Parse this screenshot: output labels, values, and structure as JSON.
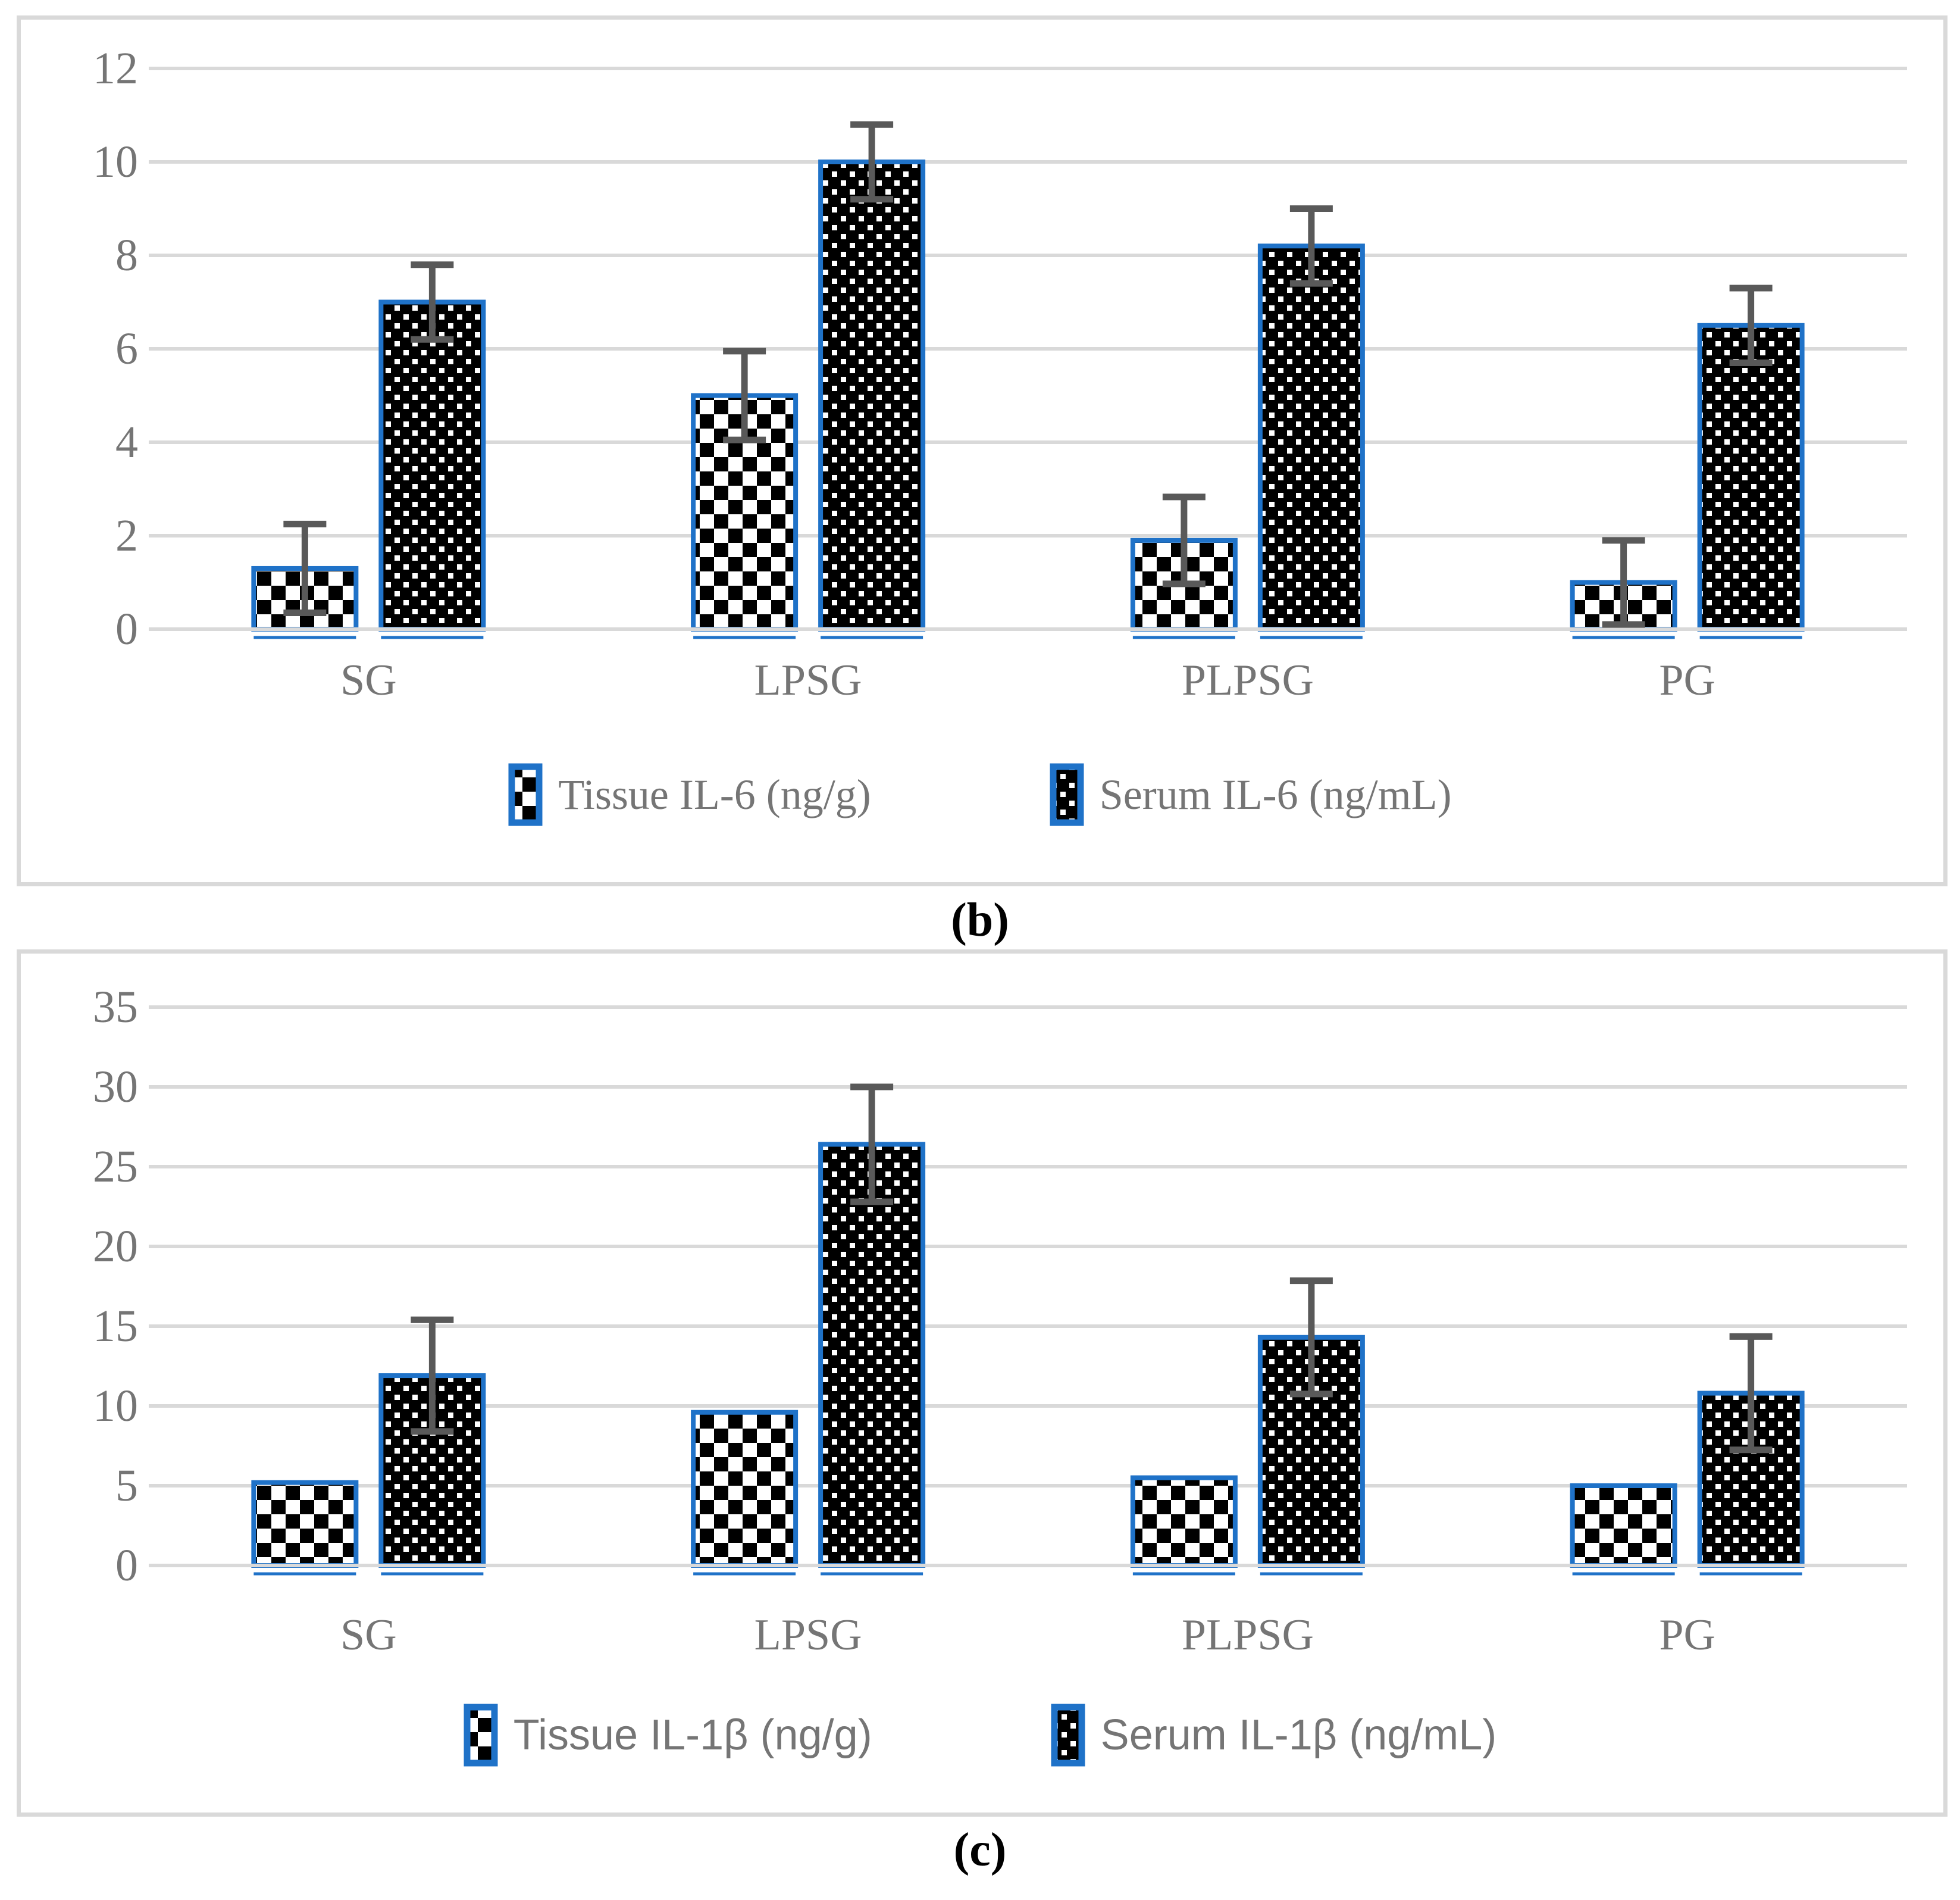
{
  "page": {
    "background": "#FFFFFF"
  },
  "colors": {
    "bar_border": "#1F72C8",
    "pattern_black": "#000000",
    "pattern_white": "#FFFFFF",
    "error_bar": "#595959",
    "gridline": "#D9D9D9",
    "panel_border": "#D9D9D9",
    "axis_text": "#757575",
    "legend_text": "#757575",
    "panel_letter_text": "#000000"
  },
  "chart_data": [
    {
      "type": "bar",
      "panel_label": "(b)",
      "title": "",
      "xlabel": "",
      "ylabel": "",
      "categories": [
        "SG",
        "LPSG",
        "PLPSG",
        "PG"
      ],
      "series": [
        {
          "name": "Tissue IL-6 (ng/g)",
          "pattern": "checker",
          "values": [
            1.3,
            5.0,
            1.9,
            1.0
          ],
          "error": [
            0.95,
            0.95,
            0.93,
            0.9
          ]
        },
        {
          "name": "Serum IL-6 (ng/mL)",
          "pattern": "dots",
          "values": [
            7.0,
            10.0,
            8.2,
            6.5
          ],
          "error": [
            0.8,
            0.8,
            0.8,
            0.8
          ]
        }
      ],
      "y_axis": {
        "min": 0,
        "max": 12,
        "step": 2,
        "ticks": [
          "0",
          "2",
          "4",
          "6",
          "8",
          "10",
          "12"
        ]
      },
      "grid": true,
      "legend_position": "bottom"
    },
    {
      "type": "bar",
      "panel_label": "(c)",
      "title": "",
      "xlabel": "",
      "ylabel": "",
      "categories": [
        "SG",
        "LPSG",
        "PLPSG",
        "PG"
      ],
      "series": [
        {
          "name": "Tissue IL-1β (ng/g)",
          "pattern": "checker",
          "values": [
            5.2,
            9.6,
            5.5,
            5.0
          ],
          "error": null
        },
        {
          "name": "Serum IL-1β (ng/mL)",
          "pattern": "dots",
          "values": [
            11.9,
            26.4,
            14.3,
            10.8
          ],
          "error": [
            3.5,
            3.6,
            3.55,
            3.55
          ]
        }
      ],
      "y_axis": {
        "min": 0,
        "max": 35,
        "step": 5,
        "ticks": [
          "0",
          "5",
          "10",
          "15",
          "20",
          "25",
          "30",
          "35"
        ]
      },
      "grid": true,
      "legend_position": "bottom"
    }
  ]
}
